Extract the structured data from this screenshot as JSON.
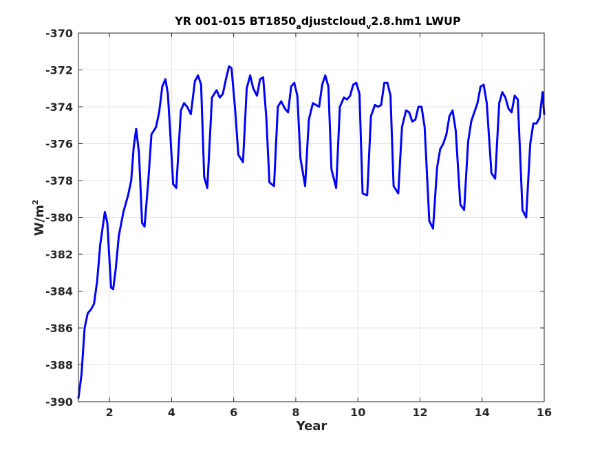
{
  "chart_data": {
    "type": "line",
    "title": {
      "part1": "YR 001-015 BT1850",
      "sub1": "a",
      "part2": "djustcloud",
      "sub2": "v",
      "part3": "2.8.hm1 LWUP"
    },
    "xlabel": "Year",
    "ylabel": {
      "base": "W/m",
      "sup": "2"
    },
    "xlim": [
      1,
      16
    ],
    "ylim": [
      -390,
      -370
    ],
    "xticks": [
      2,
      4,
      6,
      8,
      10,
      12,
      14,
      16
    ],
    "yticks": [
      -390,
      -388,
      -386,
      -384,
      -382,
      -380,
      -378,
      -376,
      -374,
      -372,
      -370
    ],
    "grid": true,
    "series": [
      {
        "color": "#0000ff",
        "x": [
          1.0,
          1.1,
          1.2,
          1.3,
          1.4,
          1.5,
          1.6,
          1.7,
          1.85,
          1.93,
          2.05,
          2.12,
          2.2,
          2.3,
          2.45,
          2.6,
          2.7,
          2.78,
          2.86,
          2.95,
          3.05,
          3.13,
          3.25,
          3.35,
          3.5,
          3.6,
          3.7,
          3.8,
          3.88,
          3.95,
          4.05,
          4.15,
          4.3,
          4.4,
          4.5,
          4.62,
          4.75,
          4.85,
          4.95,
          5.05,
          5.15,
          5.3,
          5.45,
          5.55,
          5.65,
          5.75,
          5.85,
          5.93,
          6.05,
          6.15,
          6.3,
          6.42,
          6.53,
          6.63,
          6.75,
          6.85,
          6.95,
          7.05,
          7.15,
          7.3,
          7.42,
          7.53,
          7.65,
          7.75,
          7.85,
          7.95,
          8.05,
          8.15,
          8.3,
          8.42,
          8.55,
          8.65,
          8.75,
          8.85,
          8.95,
          9.05,
          9.15,
          9.3,
          9.42,
          9.55,
          9.65,
          9.75,
          9.85,
          9.95,
          10.05,
          10.15,
          10.3,
          10.42,
          10.55,
          10.65,
          10.75,
          10.85,
          10.95,
          11.05,
          11.15,
          11.3,
          11.42,
          11.55,
          11.65,
          11.75,
          11.85,
          11.95,
          12.05,
          12.15,
          12.3,
          12.42,
          12.55,
          12.65,
          12.75,
          12.85,
          12.95,
          13.05,
          13.15,
          13.3,
          13.42,
          13.55,
          13.65,
          13.75,
          13.85,
          13.95,
          14.05,
          14.15,
          14.3,
          14.42,
          14.55,
          14.65,
          14.75,
          14.85,
          14.95,
          15.05,
          15.15,
          15.3,
          15.42,
          15.55,
          15.65,
          15.75,
          15.85,
          15.95
        ],
        "values": [
          -389.8,
          -388.5,
          -386.0,
          -385.2,
          -385.0,
          -384.7,
          -383.5,
          -381.5,
          -379.7,
          -380.3,
          -383.8,
          -383.9,
          -382.8,
          -381.0,
          -379.7,
          -378.8,
          -378.0,
          -376.2,
          -375.2,
          -376.5,
          -380.3,
          -380.5,
          -378.0,
          -375.5,
          -375.1,
          -374.3,
          -372.9,
          -372.5,
          -373.3,
          -375.2,
          -378.2,
          -378.4,
          -374.2,
          -373.8,
          -374.0,
          -374.4,
          -372.6,
          -372.3,
          -372.8,
          -377.8,
          -378.4,
          -373.5,
          -373.1,
          -373.5,
          -373.3,
          -372.5,
          -371.8,
          -371.9,
          -374.2,
          -376.6,
          -377.0,
          -373.0,
          -372.3,
          -373.0,
          -373.4,
          -372.5,
          -372.4,
          -374.6,
          -378.1,
          -378.3,
          -374.0,
          -373.7,
          -374.1,
          -374.3,
          -372.9,
          -372.7,
          -373.4,
          -376.8,
          -378.3,
          -374.7,
          -373.8,
          -373.9,
          -374.0,
          -372.8,
          -372.3,
          -372.9,
          -377.4,
          -378.4,
          -374.0,
          -373.5,
          -373.6,
          -373.4,
          -372.8,
          -372.7,
          -373.3,
          -378.7,
          -378.8,
          -374.5,
          -373.9,
          -374.0,
          -373.9,
          -372.7,
          -372.7,
          -373.4,
          -378.3,
          -378.7,
          -375.1,
          -374.2,
          -374.3,
          -374.8,
          -374.7,
          -374.0,
          -374.0,
          -375.1,
          -380.2,
          -380.6,
          -377.3,
          -376.3,
          -376.0,
          -375.5,
          -374.5,
          -374.2,
          -375.3,
          -379.3,
          -379.6,
          -375.9,
          -374.8,
          -374.3,
          -373.8,
          -372.9,
          -372.8,
          -373.8,
          -377.6,
          -377.9,
          -373.8,
          -373.2,
          -373.5,
          -374.1,
          -374.3,
          -373.4,
          -373.6,
          -379.6,
          -380.0,
          -376.0,
          -374.9,
          -374.9,
          -374.6,
          -373.2
        ],
        "x_tail": [
          16.0
        ],
        "values_tail": [
          -374.4
        ]
      }
    ]
  }
}
